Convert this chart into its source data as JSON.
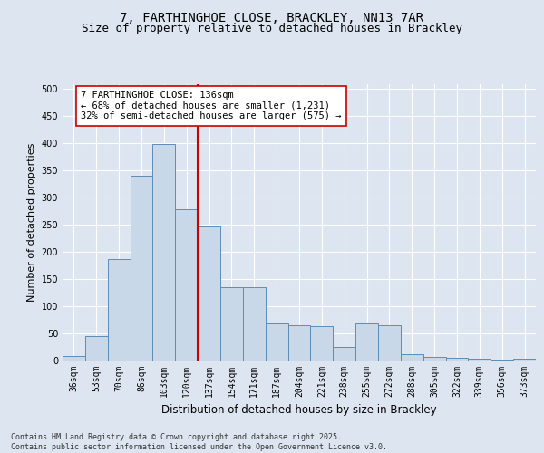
{
  "title_line1": "7, FARTHINGHOE CLOSE, BRACKLEY, NN13 7AR",
  "title_line2": "Size of property relative to detached houses in Brackley",
  "xlabel": "Distribution of detached houses by size in Brackley",
  "ylabel": "Number of detached properties",
  "categories": [
    "36sqm",
    "53sqm",
    "70sqm",
    "86sqm",
    "103sqm",
    "120sqm",
    "137sqm",
    "154sqm",
    "171sqm",
    "187sqm",
    "204sqm",
    "221sqm",
    "238sqm",
    "255sqm",
    "272sqm",
    "288sqm",
    "305sqm",
    "322sqm",
    "339sqm",
    "356sqm",
    "373sqm"
  ],
  "bar_heights": [
    8,
    45,
    186,
    340,
    398,
    278,
    246,
    135,
    135,
    68,
    65,
    62,
    25,
    68,
    65,
    11,
    6,
    4,
    3,
    1,
    2
  ],
  "bar_color": "#c8d8e8",
  "bar_edge_color": "#5b8db8",
  "property_line_color": "#cc0000",
  "property_line_idx": 6,
  "ylim": [
    0,
    510
  ],
  "yticks": [
    0,
    50,
    100,
    150,
    200,
    250,
    300,
    350,
    400,
    450,
    500
  ],
  "annotation_text": "7 FARTHINGHOE CLOSE: 136sqm\n← 68% of detached houses are smaller (1,231)\n32% of semi-detached houses are larger (575) →",
  "annotation_box_facecolor": "#ffffff",
  "annotation_box_edgecolor": "#cc0000",
  "footer_text": "Contains HM Land Registry data © Crown copyright and database right 2025.\nContains public sector information licensed under the Open Government Licence v3.0.",
  "bg_color": "#dde6f0",
  "plot_bg_color": "#dde6f0",
  "grid_color": "#ffffff",
  "title_fontsize": 10,
  "subtitle_fontsize": 9,
  "tick_fontsize": 7,
  "ylabel_fontsize": 8,
  "xlabel_fontsize": 8.5,
  "annot_fontsize": 7.5,
  "footer_fontsize": 6
}
